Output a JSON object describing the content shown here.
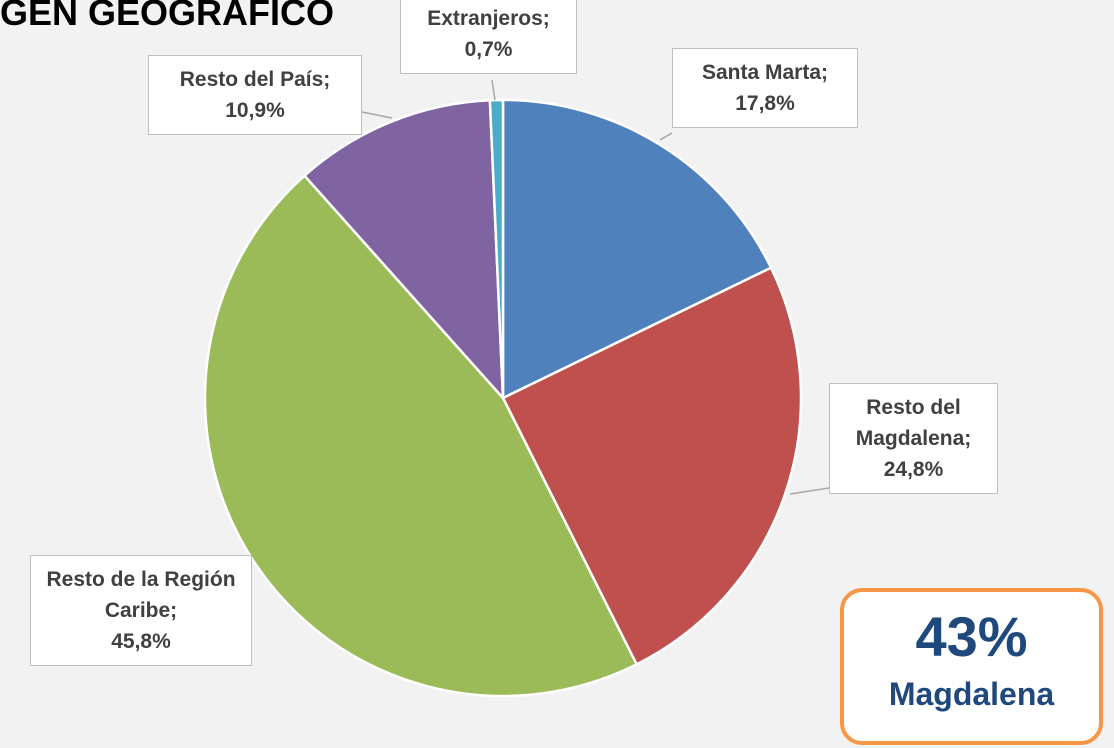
{
  "chart_data": {
    "type": "pie",
    "title": "GEN GEOGRÁFICO",
    "categories": [
      "Santa Marta;",
      "Resto del Magdalena;",
      "Resto de la Región Caribe;",
      "Resto del País;",
      "Extranjeros;"
    ],
    "values": [
      17.8,
      24.8,
      45.8,
      10.9,
      0.7
    ],
    "value_labels": [
      "17,8%",
      "24,8%",
      "45,8%",
      "10,9%",
      "0,7%"
    ],
    "colors": [
      "#4f81bd",
      "#c0504d",
      "#9bbb59",
      "#8064a2",
      "#4bacc6"
    ],
    "annotation": {
      "value": "43%",
      "label": "Magdalena"
    }
  }
}
